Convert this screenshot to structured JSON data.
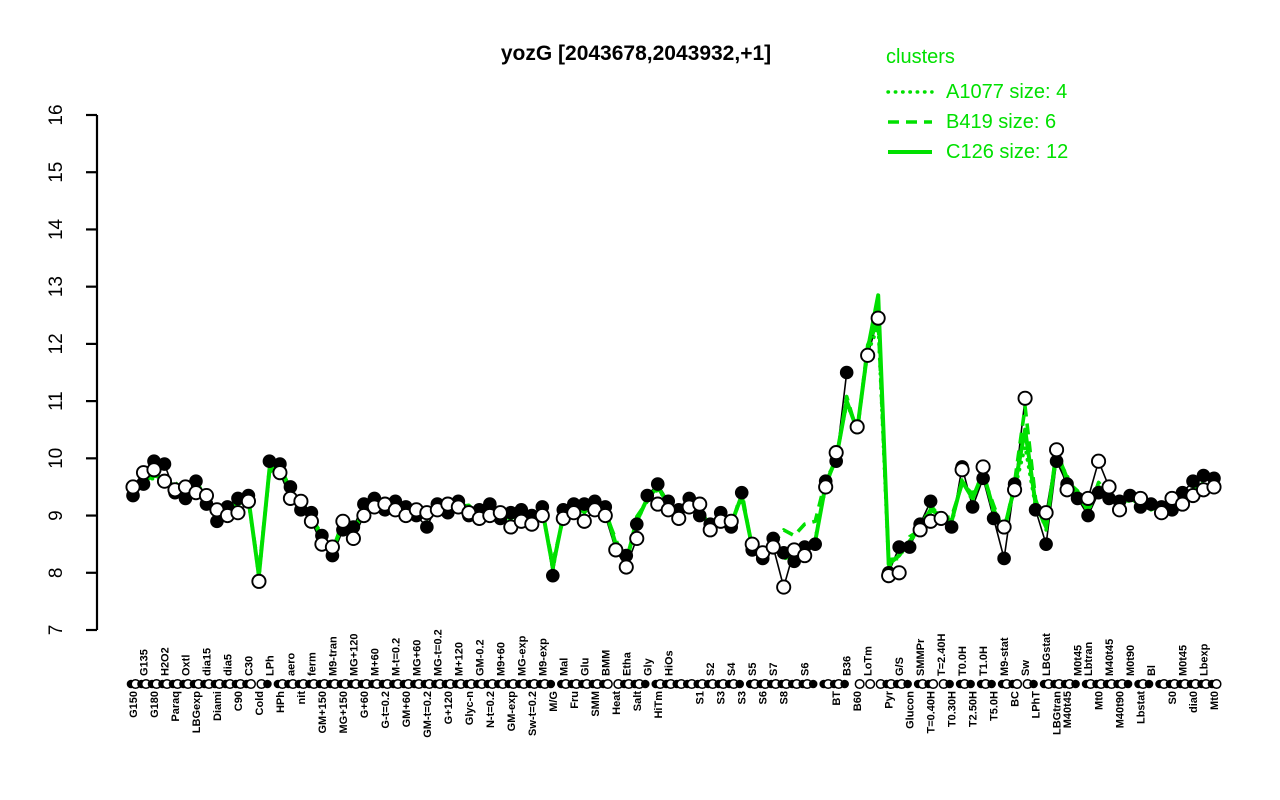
{
  "title": "yozG [2043678,2043932,+1]",
  "accent_green": "#00e000",
  "legend": {
    "header": "clusters",
    "items": [
      {
        "name": "A1077",
        "label": "A1077 size: 4",
        "style": "dotted"
      },
      {
        "name": "B419",
        "label": "B419 size: 6",
        "style": "dashed"
      },
      {
        "name": "C126",
        "label": "C126 size: 12",
        "style": "solid"
      }
    ]
  },
  "chart_data": {
    "type": "line",
    "title": "yozG [2043678,2043932,+1]",
    "ylim": [
      7,
      16
    ],
    "yticks": [
      7,
      8,
      9,
      10,
      11,
      12,
      13,
      14,
      15,
      16
    ],
    "grid": false,
    "legend_position": "top-right",
    "categories": [
      "G150",
      "G135",
      "G180",
      "H2O2",
      "Paraq",
      "Oxtl",
      "LBGexp",
      "dia15",
      "Diami",
      "dia5",
      "C90",
      "C30",
      "Cold",
      "LPh",
      "HPh",
      "aero",
      "nit",
      "ferm",
      "GM+150",
      "M9-tran",
      "MG+150",
      "MG+120",
      "G+60",
      "M+60",
      "G-t=0.2",
      "M-t=0.2",
      "GM+60",
      "MG+60",
      "GM-t=0.2",
      "MG-t=0.2",
      "G+120",
      "M+120",
      "Glyc-n",
      "GM-0.2",
      "N-t=0.2",
      "M9+60",
      "GM-exp",
      "MG-exp",
      "Sw-t=0.2",
      "M9-exp",
      "M/G",
      "Mal",
      "Fru",
      "Glu",
      "SMM",
      "BMM",
      "Heat",
      "Etha",
      "Salt",
      "Gly",
      "HiTm",
      "HiOs",
      "",
      "",
      "S1",
      "S2",
      "S3",
      "S4",
      "S3",
      "S5",
      "S6",
      "S7",
      "S8",
      "",
      "S6",
      "",
      "",
      "BT",
      "B36",
      "B60",
      "LoTm",
      "",
      "Pyr",
      "G/S",
      "Glucon",
      "SMMPr",
      "T=0.40H",
      "T=2.40H",
      "T0.30H",
      "T0.0H",
      "T2.50H",
      "T1.0H",
      "T5.0H",
      "M9-stat",
      "BC",
      "Sw",
      "LPhT",
      "LBGstat",
      "LBGtran",
      "M40t45",
      "M0t45",
      "Lbtran",
      "Mt0",
      "M40t45",
      "M40t90",
      "M0t90",
      "Lbstat",
      "Bl",
      "",
      "S0",
      "M0t45",
      "dia0",
      "Lbexp",
      "Mt0"
    ],
    "label_rows": [
      "l",
      "u",
      "l",
      "u",
      "l",
      "u",
      "l",
      "u",
      "l",
      "u",
      "l",
      "u",
      "l",
      "u",
      "l",
      "u",
      "l",
      "u",
      "l",
      "u",
      "l",
      "u",
      "l",
      "u",
      "l",
      "u",
      "l",
      "u",
      "l",
      "u",
      "l",
      "u",
      "l",
      "u",
      "l",
      "u",
      "l",
      "u",
      "l",
      "u",
      "l",
      "u",
      "l",
      "u",
      "l",
      "u",
      "l",
      "u",
      "l",
      "u",
      "l",
      "u",
      "l",
      "u",
      "l",
      "u",
      "l",
      "u",
      "l",
      "u",
      "l",
      "u",
      "l",
      "u",
      "u",
      "l",
      "u",
      "l",
      "u",
      "l",
      "u",
      "l",
      "l",
      "u",
      "l",
      "u",
      "l",
      "u",
      "l",
      "u",
      "l",
      "u",
      "l",
      "u",
      "l",
      "u",
      "l",
      "u",
      "l",
      "l",
      "u",
      "u",
      "l",
      "u",
      "l",
      "u",
      "l",
      "u",
      "l",
      "l",
      "u",
      "l",
      "u",
      "l"
    ],
    "series": [
      {
        "name": "A1077",
        "cluster_size": 4,
        "style": "dotted",
        "color": "#00e000",
        "values": [
          9.34,
          9.65,
          9.64,
          9.7,
          9.44,
          9.5,
          9.49,
          9.35,
          8.94,
          9.15,
          9.14,
          9.35,
          7.89,
          9.85,
          9.79,
          9.5,
          9.14,
          9.05,
          8.54,
          8.45,
          8.79,
          8.75,
          9.04,
          9.25,
          9.09,
          9.25,
          9.04,
          9.1,
          8.94,
          9.2,
          9.04,
          9.25,
          9.04,
          9.1,
          9.04,
          9.05,
          8.89,
          9.1,
          8.89,
          9.15,
          8.04,
          9.05,
          9.09,
          9.15,
          9.14,
          9.15,
          8.44,
          8.25,
          8.84,
          9.35,
          9.44,
          9.25,
          8.99,
          9.3,
          9.04,
          8.85,
          8.94,
          8.9,
          9.29,
          8.5,
          8.24,
          8.6,
          8.24,
          8.3,
          8.34,
          8.6,
          9.49,
          10.05,
          10.94,
          10.55,
          11.84,
          12.3,
          8.09,
          8.35,
          8.49,
          8.85,
          9.04,
          9.05,
          8.84,
          9.65,
          9.24,
          9.8,
          9.04,
          8.8,
          9.44,
          10.2,
          9.14,
          8.85,
          10.04,
          9.7,
          9.29,
          9.15,
          9.44,
          9.45,
          9.14,
          9.35,
          9.14,
          9.2,
          9.04,
          9.25,
          9.24,
          9.5,
          9.44,
          9.6
        ]
      },
      {
        "name": "B419",
        "cluster_size": 6,
        "style": "dashed",
        "color": "#00e000",
        "values": [
          9.48,
          9.55,
          9.78,
          9.6,
          9.58,
          9.4,
          9.63,
          9.25,
          9.08,
          9.05,
          9.28,
          9.25,
          8.03,
          9.75,
          9.93,
          9.4,
          9.28,
          8.95,
          8.68,
          8.35,
          8.93,
          8.65,
          9.18,
          9.15,
          9.23,
          9.15,
          9.18,
          9.0,
          9.08,
          9.1,
          9.18,
          9.15,
          9.18,
          9.0,
          9.18,
          8.95,
          9.03,
          9.0,
          9.03,
          9.05,
          8.18,
          8.95,
          9.23,
          9.05,
          9.28,
          9.05,
          8.58,
          8.15,
          8.98,
          9.25,
          9.58,
          9.15,
          9.13,
          9.2,
          9.18,
          8.75,
          9.08,
          8.8,
          9.43,
          8.4,
          8.38,
          8.5,
          8.75,
          8.65,
          8.85,
          8.9,
          9.63,
          9.95,
          11.08,
          10.45,
          11.98,
          12.4,
          8.23,
          8.25,
          8.63,
          8.75,
          9.18,
          8.95,
          8.98,
          9.55,
          9.38,
          9.7,
          9.18,
          8.7,
          9.58,
          10.9,
          9.28,
          8.75,
          10.18,
          9.6,
          9.43,
          9.05,
          9.58,
          9.35,
          9.28,
          9.25,
          9.28,
          9.1,
          9.18,
          9.15,
          9.38,
          9.4,
          9.58,
          9.5
        ]
      },
      {
        "name": "C126",
        "cluster_size": 12,
        "style": "solid",
        "color": "#00e000",
        "values": [
          9.4,
          9.6,
          9.7,
          9.65,
          9.5,
          9.45,
          9.55,
          9.3,
          9.0,
          9.1,
          9.2,
          9.3,
          7.95,
          9.8,
          9.85,
          9.45,
          9.2,
          9.0,
          8.6,
          8.4,
          8.85,
          8.7,
          9.1,
          9.2,
          9.15,
          9.2,
          9.1,
          9.05,
          9.0,
          9.15,
          9.1,
          9.2,
          9.1,
          9.05,
          9.1,
          9.0,
          8.95,
          9.05,
          8.95,
          9.1,
          8.1,
          9.0,
          9.15,
          9.1,
          9.2,
          9.1,
          8.5,
          8.2,
          8.9,
          9.3,
          9.5,
          9.2,
          9.05,
          9.25,
          9.1,
          8.8,
          9.0,
          8.85,
          9.35,
          8.45,
          8.3,
          8.55,
          8.3,
          8.25,
          8.4,
          8.55,
          9.55,
          10.0,
          11.0,
          10.5,
          11.9,
          12.85,
          8.15,
          8.3,
          8.55,
          8.8,
          9.1,
          9.0,
          8.9,
          9.6,
          9.3,
          9.75,
          9.1,
          8.75,
          9.5,
          10.5,
          9.2,
          8.8,
          10.1,
          9.65,
          9.35,
          9.1,
          9.5,
          9.4,
          9.2,
          9.3,
          9.2,
          9.15,
          9.1,
          9.2,
          9.3,
          9.45,
          9.5,
          9.55
        ]
      }
    ],
    "points": {
      "filled": [
        9.35,
        9.55,
        9.95,
        9.9,
        9.4,
        9.3,
        9.6,
        9.2,
        8.9,
        9.15,
        9.3,
        9.35,
        null,
        9.95,
        9.9,
        9.5,
        9.1,
        9.05,
        8.65,
        8.3,
        8.75,
        8.8,
        9.2,
        9.3,
        9.1,
        9.25,
        9.15,
        9.0,
        8.8,
        9.2,
        9.05,
        9.25,
        9.0,
        9.1,
        9.2,
        8.95,
        9.05,
        9.1,
        9.0,
        9.15,
        7.95,
        9.1,
        9.2,
        9.2,
        9.25,
        9.15,
        null,
        8.3,
        8.85,
        9.35,
        9.55,
        9.25,
        9.1,
        9.3,
        9.0,
        8.85,
        9.05,
        8.8,
        9.4,
        8.4,
        8.25,
        8.6,
        8.35,
        8.2,
        8.45,
        8.5,
        9.6,
        9.95,
        11.5,
        null,
        null,
        null,
        8.0,
        8.45,
        8.45,
        8.85,
        9.25,
        null,
        8.8,
        9.85,
        9.15,
        9.65,
        8.95,
        8.25,
        9.55,
        null,
        9.1,
        8.5,
        9.95,
        9.55,
        9.3,
        9.0,
        9.4,
        9.3,
        9.25,
        9.35,
        9.15,
        9.2,
        9.15,
        9.1,
        9.4,
        9.6,
        9.7,
        9.65
      ],
      "open": [
        9.5,
        9.75,
        9.8,
        9.6,
        9.45,
        9.5,
        9.4,
        9.35,
        9.1,
        9.0,
        9.05,
        9.25,
        7.85,
        null,
        9.75,
        9.3,
        9.25,
        8.9,
        8.5,
        8.45,
        8.9,
        8.6,
        9.0,
        9.15,
        9.2,
        9.1,
        9.0,
        9.1,
        9.05,
        9.1,
        9.2,
        9.15,
        9.05,
        8.95,
        9.0,
        9.05,
        8.8,
        8.9,
        8.85,
        9.0,
        null,
        8.95,
        9.05,
        8.9,
        9.1,
        9.0,
        8.4,
        8.1,
        8.6,
        null,
        9.2,
        9.1,
        8.95,
        9.15,
        9.2,
        8.75,
        8.9,
        8.9,
        null,
        8.5,
        8.35,
        8.45,
        7.75,
        8.4,
        8.3,
        null,
        9.5,
        10.1,
        null,
        10.55,
        11.8,
        12.45,
        7.95,
        8.0,
        null,
        8.75,
        8.9,
        8.95,
        null,
        9.8,
        null,
        9.85,
        null,
        8.8,
        9.45,
        11.05,
        null,
        9.05,
        10.15,
        9.45,
        null,
        9.3,
        9.95,
        9.5,
        9.1,
        null,
        9.3,
        null,
        9.05,
        9.3,
        9.2,
        9.35,
        9.45,
        9.5
      ]
    }
  }
}
